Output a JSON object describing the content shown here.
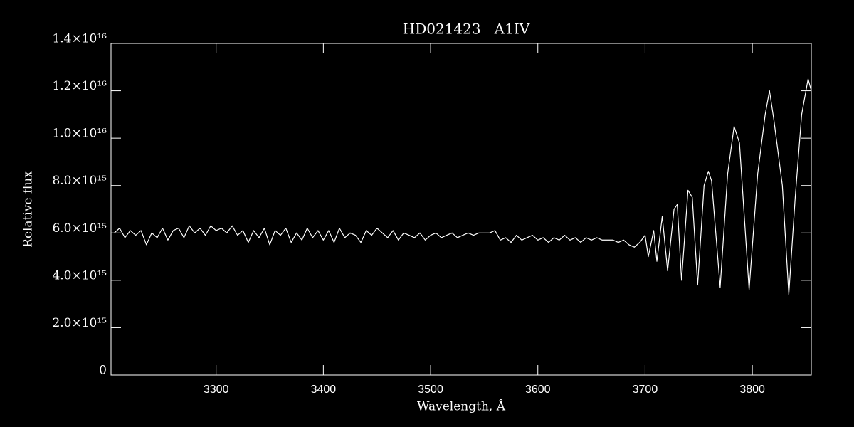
{
  "chart_data": {
    "type": "line",
    "title": "HD021423   A1IV",
    "xlabel": "Wavelength, Å",
    "ylabel": "Relative flux",
    "color": "#ffffff",
    "xlim": [
      3202,
      3855
    ],
    "ylim": [
      0,
      1.4e+16
    ],
    "xticks": [
      3300,
      3400,
      3500,
      3600,
      3700,
      3800
    ],
    "yticks": [
      0,
      {
        "value": 2000000000000000.0,
        "label": "2.0×10¹⁵"
      },
      {
        "value": 4000000000000000.0,
        "label": "4.0×10¹⁵"
      },
      {
        "value": 6000000000000000.0,
        "label": "6.0×10¹⁵"
      },
      {
        "value": 8000000000000000.0,
        "label": "8.0×10¹⁵"
      },
      {
        "value": 1e+16,
        "label": "1.0×10¹⁶"
      },
      {
        "value": 1.2e+16,
        "label": "1.2×10¹⁶"
      },
      {
        "value": 1.4e+16,
        "label": "1.4×10¹⁶"
      }
    ],
    "x": [
      3205,
      3210,
      3215,
      3220,
      3225,
      3230,
      3235,
      3240,
      3245,
      3250,
      3255,
      3260,
      3265,
      3270,
      3275,
      3280,
      3285,
      3290,
      3295,
      3300,
      3305,
      3310,
      3315,
      3320,
      3325,
      3330,
      3335,
      3340,
      3345,
      3350,
      3355,
      3360,
      3365,
      3370,
      3375,
      3380,
      3385,
      3390,
      3395,
      3400,
      3405,
      3410,
      3415,
      3420,
      3425,
      3430,
      3435,
      3440,
      3445,
      3450,
      3455,
      3460,
      3465,
      3470,
      3475,
      3480,
      3485,
      3490,
      3495,
      3500,
      3505,
      3510,
      3515,
      3520,
      3525,
      3530,
      3535,
      3540,
      3545,
      3550,
      3555,
      3560,
      3565,
      3570,
      3575,
      3580,
      3585,
      3590,
      3595,
      3600,
      3605,
      3610,
      3615,
      3620,
      3625,
      3630,
      3635,
      3640,
      3645,
      3650,
      3655,
      3660,
      3665,
      3670,
      3675,
      3680,
      3685,
      3690,
      3695,
      3700,
      3703,
      3708,
      3711,
      3716,
      3721,
      3727,
      3730,
      3734,
      3740,
      3744,
      3749,
      3755,
      3759,
      3762,
      3770,
      3777,
      3783,
      3788,
      3797,
      3805,
      3812,
      3816,
      3820,
      3828,
      3834,
      3840,
      3846,
      3852,
      3855
    ],
    "values": [
      6000000000000000.0,
      6200000000000000.0,
      5800000000000000.0,
      6100000000000000.0,
      5900000000000000.0,
      6100000000000000.0,
      5500000000000000.0,
      6000000000000000.0,
      5800000000000000.0,
      6200000000000000.0,
      5700000000000000.0,
      6100000000000000.0,
      6200000000000000.0,
      5800000000000000.0,
      6300000000000000.0,
      6000000000000000.0,
      6200000000000000.0,
      5900000000000000.0,
      6300000000000000.0,
      6100000000000000.0,
      6200000000000000.0,
      6000000000000000.0,
      6300000000000000.0,
      5900000000000000.0,
      6100000000000000.0,
      5600000000000000.0,
      6100000000000000.0,
      5800000000000000.0,
      6200000000000000.0,
      5500000000000000.0,
      6100000000000000.0,
      5900000000000000.0,
      6200000000000000.0,
      5600000000000000.0,
      6000000000000000.0,
      5700000000000000.0,
      6200000000000000.0,
      5800000000000000.0,
      6100000000000000.0,
      5700000000000000.0,
      6100000000000000.0,
      5600000000000000.0,
      6200000000000000.0,
      5800000000000000.0,
      6000000000000000.0,
      5900000000000000.0,
      5600000000000000.0,
      6100000000000000.0,
      5900000000000000.0,
      6200000000000000.0,
      6000000000000000.0,
      5800000000000000.0,
      6100000000000000.0,
      5700000000000000.0,
      6000000000000000.0,
      5900000000000000.0,
      5800000000000000.0,
      6000000000000000.0,
      5700000000000000.0,
      5900000000000000.0,
      6000000000000000.0,
      5800000000000000.0,
      5900000000000000.0,
      6000000000000000.0,
      5800000000000000.0,
      5900000000000000.0,
      6000000000000000.0,
      5900000000000000.0,
      6000000000000000.0,
      6000000000000000.0,
      6000000000000000.0,
      6100000000000000.0,
      5700000000000000.0,
      5800000000000000.0,
      5600000000000000.0,
      5900000000000000.0,
      5700000000000000.0,
      5800000000000000.0,
      5900000000000000.0,
      5700000000000000.0,
      5800000000000000.0,
      5600000000000000.0,
      5800000000000000.0,
      5700000000000000.0,
      5900000000000000.0,
      5700000000000000.0,
      5800000000000000.0,
      5600000000000000.0,
      5800000000000000.0,
      5700000000000000.0,
      5800000000000000.0,
      5700000000000000.0,
      5700000000000000.0,
      5700000000000000.0,
      5600000000000000.0,
      5700000000000000.0,
      5500000000000000.0,
      5400000000000000.0,
      5600000000000000.0,
      5900000000000000.0,
      5000000000000000.0,
      6100000000000000.0,
      4800000000000000.0,
      6700000000000000.0,
      4400000000000000.0,
      7000000000000000.0,
      7200000000000000.0,
      4000000000000000.0,
      7800000000000000.0,
      7500000000000000.0,
      3800000000000000.0,
      8000000000000000.0,
      8600000000000000.0,
      8200000000000000.0,
      3700000000000000.0,
      8500000000000000.0,
      1.05e+16,
      9800000000000000.0,
      3600000000000000.0,
      8500000000000000.0,
      1.1e+16,
      1.2e+16,
      1.08e+16,
      8000000000000000.0,
      3400000000000000.0,
      7500000000000000.0,
      1.1e+16,
      1.25e+16,
      1.2e+16
    ]
  }
}
